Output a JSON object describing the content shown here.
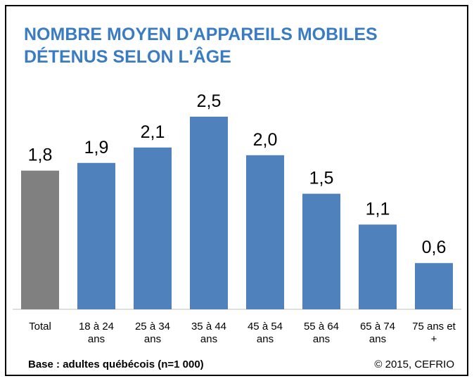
{
  "chart_data": {
    "type": "bar",
    "title": "NOMBRE MOYEN D'APPAREILS MOBILES",
    "subtitle": "DÉTENUS SELON L'ÂGE",
    "categories": [
      "Total",
      "18 à 24 ans",
      "25 à 34 ans",
      "35 à 44 ans",
      "45 à 54 ans",
      "55 à 64 ans",
      "65 à 74 ans",
      "75 ans et +"
    ],
    "values": [
      1.8,
      1.9,
      2.1,
      2.5,
      2.0,
      1.5,
      1.1,
      0.6
    ],
    "value_labels": [
      "1,8",
      "1,9",
      "2,1",
      "2,5",
      "2,0",
      "1,5",
      "1,1",
      "0,6"
    ],
    "colors": [
      "#808080",
      "#4f81bd",
      "#4f81bd",
      "#4f81bd",
      "#4f81bd",
      "#4f81bd",
      "#4f81bd",
      "#4f81bd"
    ],
    "note": "Base : adultes québécois (n=1 000)",
    "source": "© 2015, CEFRIO"
  }
}
